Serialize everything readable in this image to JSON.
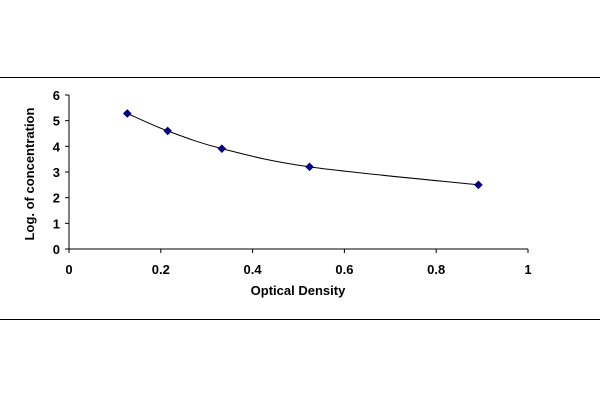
{
  "chart_data": {
    "type": "scatter",
    "title": "",
    "xlabel": "Optical Density",
    "ylabel": "Log. of concentration",
    "xlim": [
      0,
      1
    ],
    "ylim": [
      0,
      6
    ],
    "xticks": [
      "0",
      "0.2",
      "0.4",
      "0.6",
      "0.8",
      "1"
    ],
    "yticks": [
      "0",
      "1",
      "2",
      "3",
      "4",
      "5",
      "6"
    ],
    "grid": false,
    "legend": "none",
    "series": [
      {
        "x": [
          0.127,
          0.215,
          0.333,
          0.524,
          0.892
        ],
        "y": [
          5.28,
          4.6,
          3.91,
          3.2,
          2.5
        ],
        "marker": "diamond",
        "smooth_line": true
      }
    ],
    "colors": {
      "line": "#000000",
      "marker": "#000080",
      "axis": "#000000"
    }
  }
}
